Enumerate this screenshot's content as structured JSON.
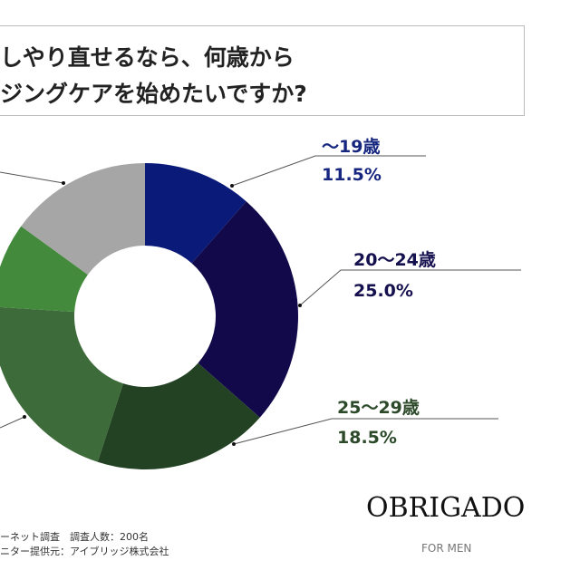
{
  "title": {
    "line1": "しやり直せるなら、何歳から",
    "line2": "ジングケアを始めたいですか?"
  },
  "chart_data": {
    "type": "pie",
    "donut": true,
    "start": "top, clockwise",
    "slices": [
      {
        "label": "～19歳",
        "value": 11.5,
        "value_label": "11.5%",
        "color": "#0a1a78",
        "label_color": "#16267f"
      },
      {
        "label": "20～24歳",
        "value": 25.0,
        "value_label": "25.0%",
        "color": "#12094a",
        "label_color": "#15104e"
      },
      {
        "label": "25～29歳",
        "value": 18.5,
        "value_label": "18.5%",
        "color": "#234224",
        "label_color": "#2c4a2a"
      },
      {
        "label": "",
        "value": 21.0,
        "color": "#3d6b3a"
      },
      {
        "label": "",
        "value": 9.0,
        "color": "#438a3c"
      },
      {
        "label": "",
        "value": 15.0,
        "color": "#a6a6a6"
      }
    ]
  },
  "footer": {
    "line1": "ーネット調査　調査人数：200名",
    "line2": "ニター提供元：アイブリッジ株式会社"
  },
  "logo": {
    "brand": "OBRIGADO",
    "sub": "FOR MEN"
  }
}
